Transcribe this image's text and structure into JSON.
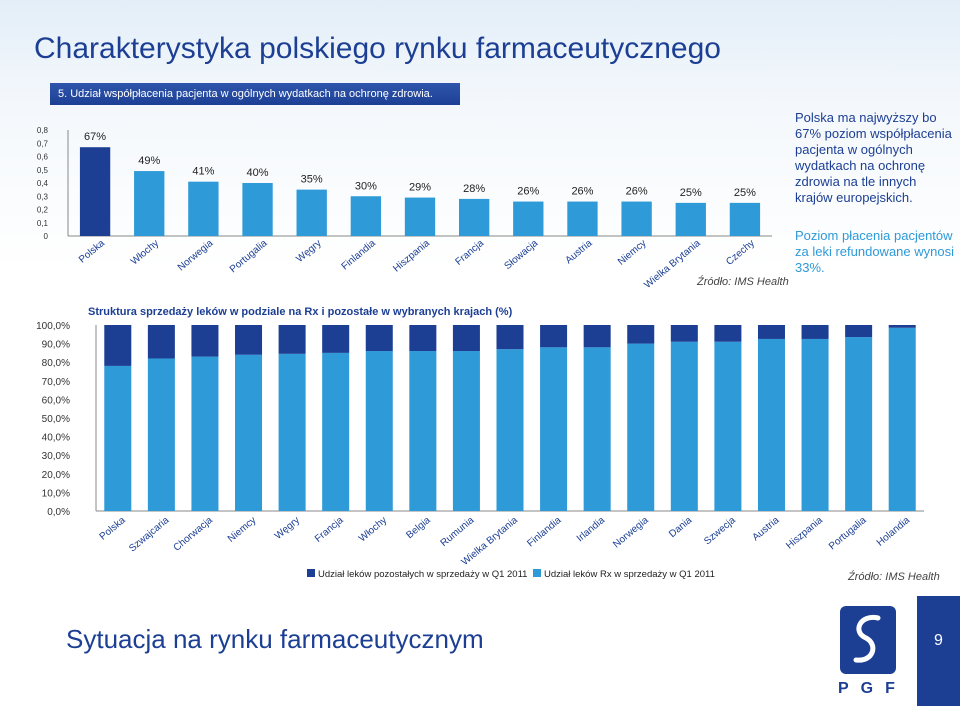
{
  "header": {
    "title": "Charakterystyka polskiego rynku farmaceutycznego",
    "subtitle": "5. Udział współpłacenia pacjenta w ogólnych wydatkach na ochronę zdrowia."
  },
  "side_notes": {
    "note1": "Polska ma najwyższy bo 67% poziom współpłacenia pacjenta w ogólnych wydatkach na ochronę zdrowia na tle innych krajów europejskich.",
    "note2": "Poziom płacenia pacjentów za leki refundowane wynosi 33%."
  },
  "sources": {
    "chart1": "Źródło: IMS Health",
    "chart2": "Źródło: IMS Health"
  },
  "footer": {
    "title": "Sytuacja na rynku farmaceutycznym",
    "logo_text": "PGF",
    "page_number": "9"
  },
  "colors": {
    "primary": "#1c3f94",
    "light": "#2e9ad8",
    "dark_bar": "#1c3f94",
    "light_bar": "#2e9ad8"
  },
  "chart_data": [
    {
      "type": "bar",
      "title": "",
      "categories": [
        "Polska",
        "Włochy",
        "Norwegia",
        "Portugalia",
        "Węgry",
        "Finlandia",
        "Hiszpania",
        "Francja",
        "Słowacja",
        "Austria",
        "Niemcy",
        "Wielka Brytania",
        "Czechy"
      ],
      "values": [
        0.67,
        0.49,
        0.41,
        0.4,
        0.35,
        0.3,
        0.29,
        0.28,
        0.26,
        0.26,
        0.26,
        0.25,
        0.25
      ],
      "data_labels": [
        "67%",
        "49%",
        "41%",
        "40%",
        "35%",
        "30%",
        "29%",
        "28%",
        "26%",
        "26%",
        "26%",
        "25%",
        "25%"
      ],
      "ylim": [
        0,
        0.8
      ],
      "yticks": [
        "0",
        "0,1",
        "0,2",
        "0,3",
        "0,4",
        "0,5",
        "0,6",
        "0,7",
        "0,8"
      ],
      "grid": false
    },
    {
      "type": "bar",
      "stacked": true,
      "title": "Struktura sprzedaży leków w podziale na Rx i pozostałe w wybranych krajach (%)",
      "categories": [
        "Polska",
        "Szwajcaria",
        "Chorwacja",
        "Niemcy",
        "Węgry",
        "Francja",
        "Włochy",
        "Belgia",
        "Rumunia",
        "Wielka Brytania",
        "Finlandia",
        "Irlandia",
        "Norwegia",
        "Dania",
        "Szwecja",
        "Austria",
        "Hiszpania",
        "Portugalia",
        "Holandia"
      ],
      "series": [
        {
          "name": "Udział leków Rx w sprzedaży w Q1 2011",
          "values": [
            78,
            82,
            83,
            84,
            84.5,
            85,
            86,
            86,
            86,
            87,
            88,
            88,
            90,
            91,
            91,
            92.5,
            92.5,
            93.5,
            98.5
          ]
        },
        {
          "name": "Udział leków pozostałych w sprzedaży w Q1 2011",
          "values": [
            22,
            18,
            17,
            16,
            15.5,
            15,
            14,
            14,
            14,
            13,
            12,
            12,
            10,
            9,
            9,
            7.5,
            7.5,
            6.5,
            1.5
          ]
        }
      ],
      "ylim": [
        0,
        100
      ],
      "yticks": [
        "0,0%",
        "10,0%",
        "20,0%",
        "30,0%",
        "40,0%",
        "50,0%",
        "60,0%",
        "70,0%",
        "80,0%",
        "90,0%",
        "100,0%"
      ],
      "legend": "bottom",
      "grid": false
    }
  ]
}
